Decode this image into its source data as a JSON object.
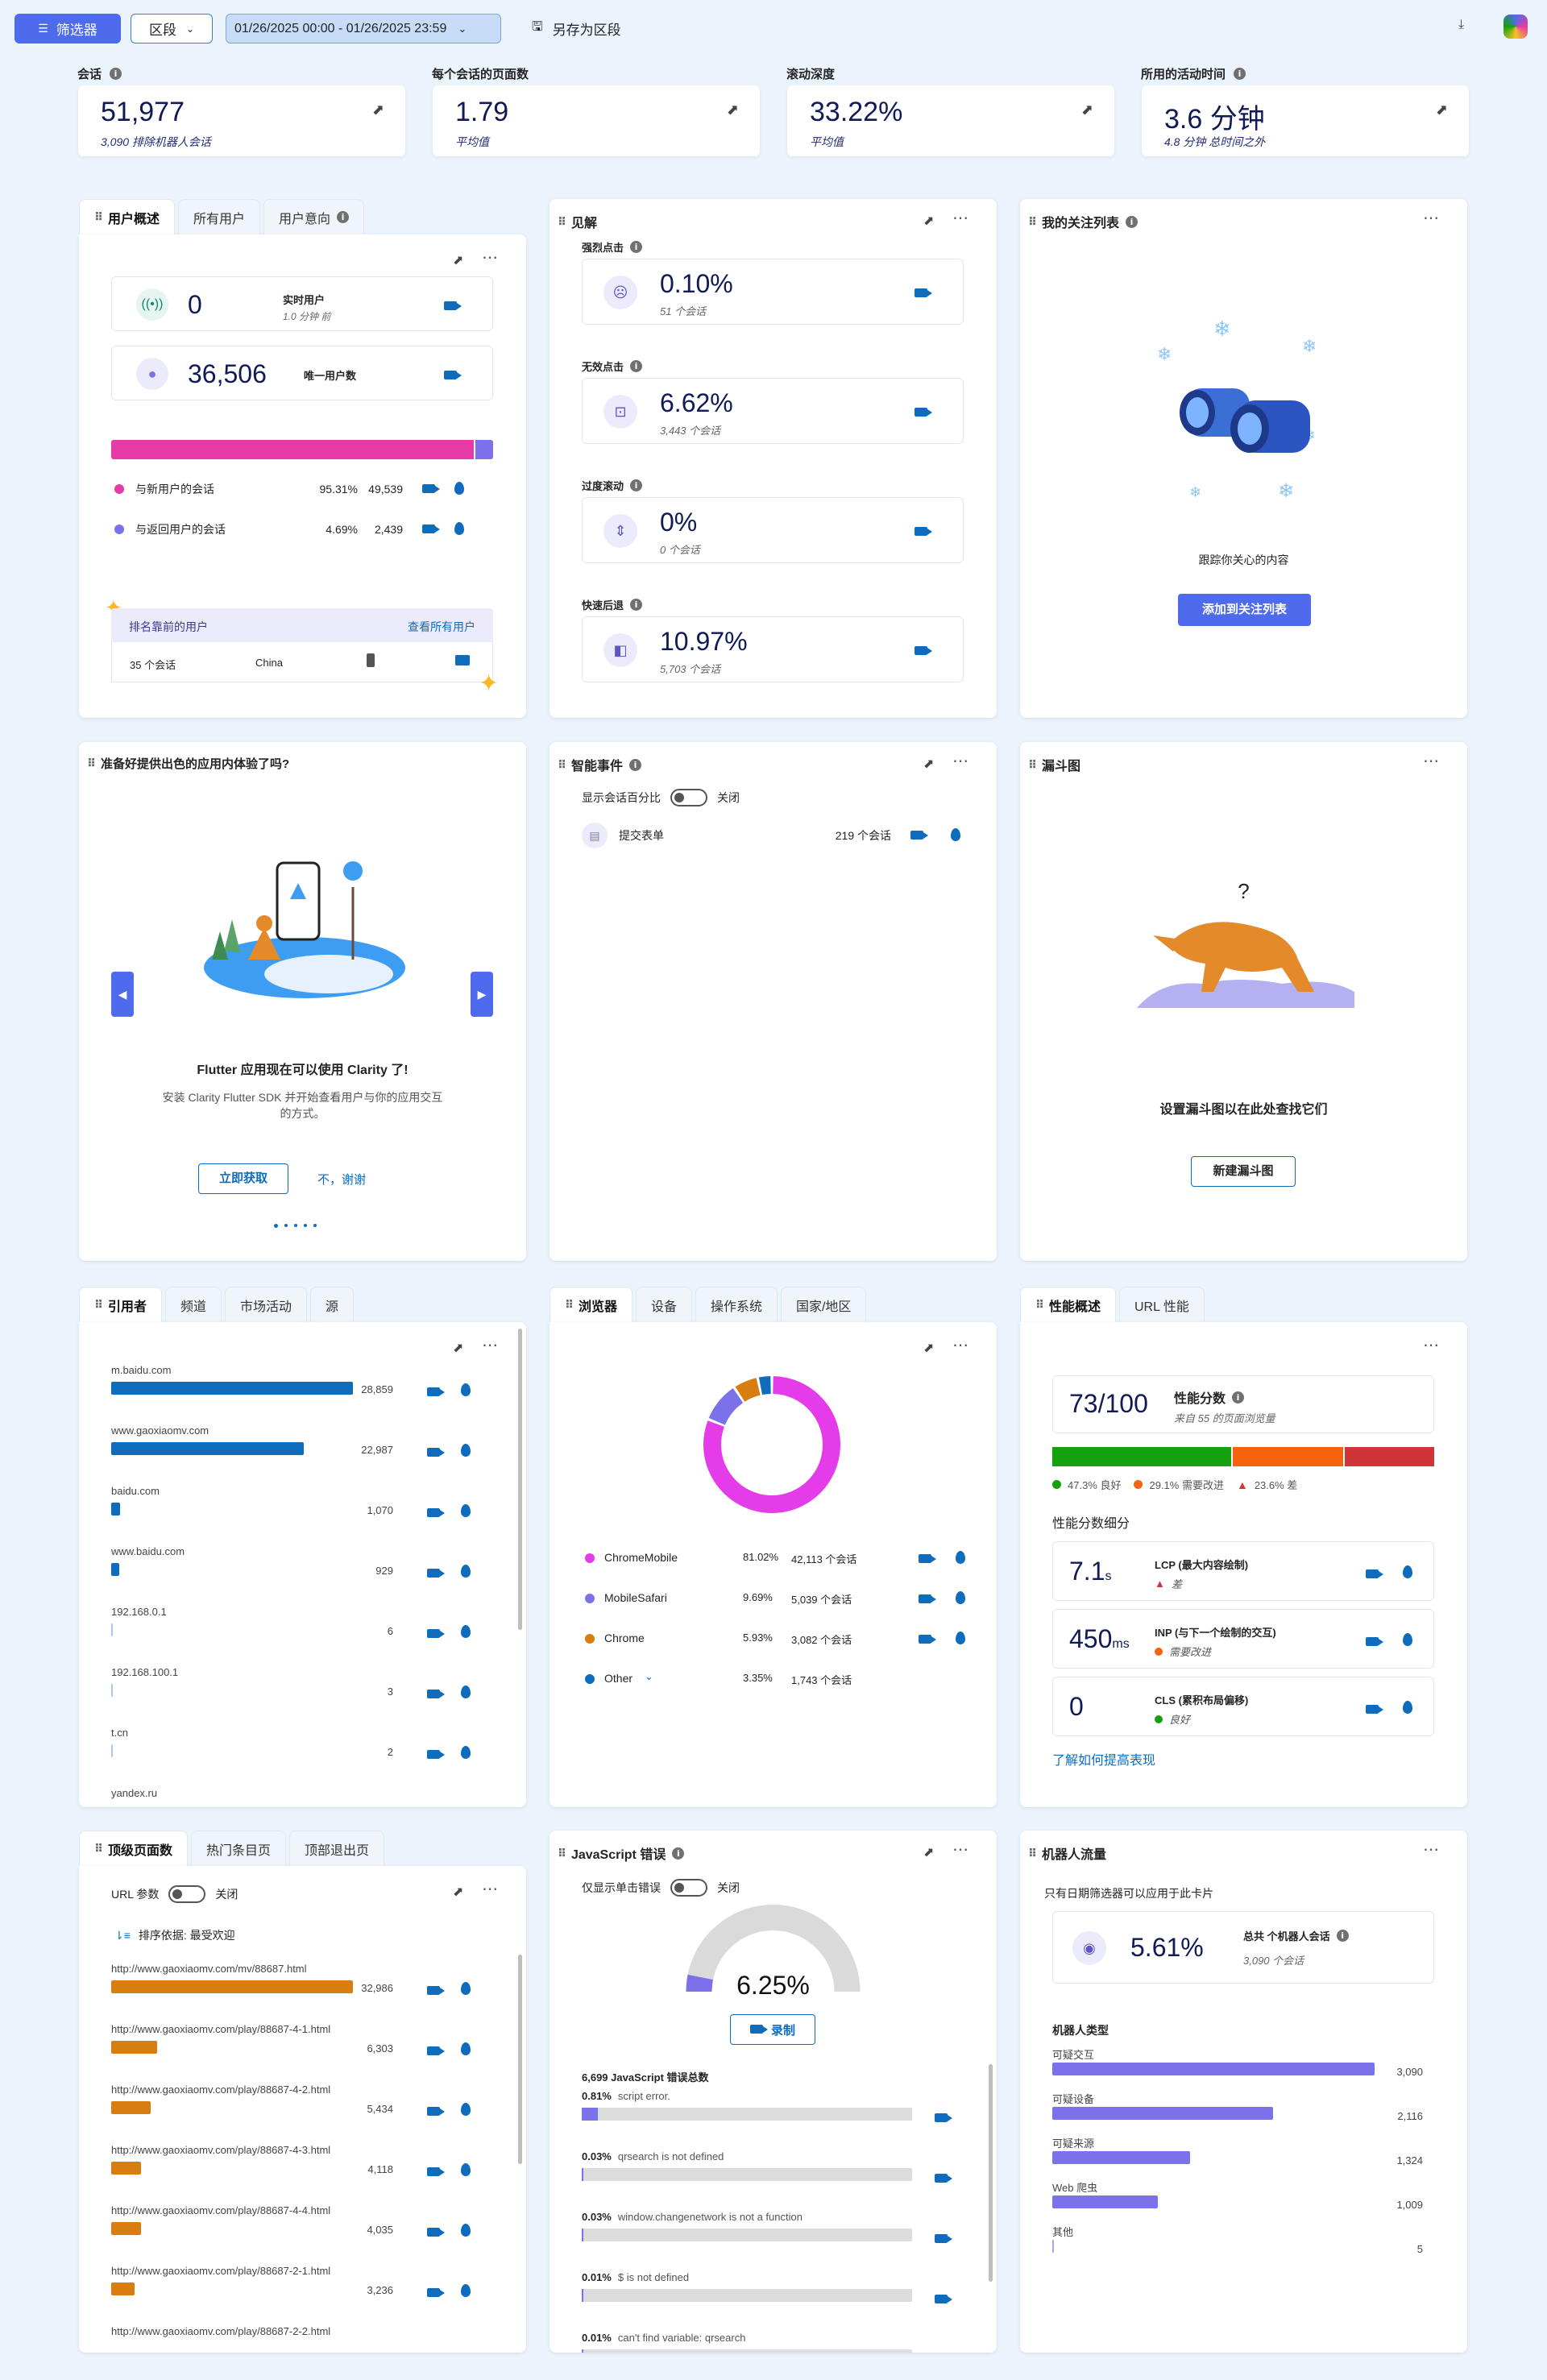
{
  "toolbar": {
    "filter_label": "筛选器",
    "segment_label": "区段",
    "date_range": "01/26/2025 00:00 - 01/26/2025 23:59",
    "save_segment": "另存为区段"
  },
  "kpis": [
    {
      "label": "会话",
      "value": "51,977",
      "sub": "3,090 排除机器人会话",
      "info": true
    },
    {
      "label": "每个会话的页面数",
      "value": "1.79",
      "sub": "平均值",
      "info": false
    },
    {
      "label": "滚动深度",
      "value": "33.22%",
      "sub": "平均值",
      "info": false
    },
    {
      "label": "所用的活动时间",
      "value": "3.6 分钟",
      "sub": "4.8 分钟 总时间之外",
      "info": true
    }
  ],
  "user_overview": {
    "tabs": [
      "用户概述",
      "所有用户",
      "用户意向"
    ],
    "live_users": {
      "value": "0",
      "label": "实时用户",
      "sub": "1.0 分钟 前"
    },
    "unique_users": {
      "value": "36,506",
      "label": "唯一用户数"
    },
    "split": [
      {
        "label": "与新用户的会话",
        "pct": "95.31%",
        "count": "49,539",
        "color": "#e43ba6",
        "fraction": 0.9531
      },
      {
        "label": "与返回用户的会话",
        "pct": "4.69%",
        "count": "2,439",
        "color": "#7b72e9",
        "fraction": 0.0469
      }
    ],
    "top_users_title": "排名靠前的用户",
    "top_users_link": "查看所有用户",
    "top_user_row": {
      "sessions": "35 个会话",
      "country": "China"
    }
  },
  "insights": {
    "title": "见解",
    "items": [
      {
        "label": "强烈点击",
        "value": "0.10%",
        "sub": "51 个会话"
      },
      {
        "label": "无效点击",
        "value": "6.62%",
        "sub": "3,443 个会话"
      },
      {
        "label": "过度滚动",
        "value": "0%",
        "sub": "0 个会话"
      },
      {
        "label": "快速后退",
        "value": "10.97%",
        "sub": "5,703 个会话"
      }
    ]
  },
  "watchlist": {
    "title": "我的关注列表",
    "caption": "跟踪你关心的内容",
    "button": "添加到关注列表"
  },
  "flutter": {
    "title": "准备好提供出色的应用内体验了吗?",
    "heading": "Flutter 应用现在可以使用 Clarity 了!",
    "body_line1": "安装 Clarity Flutter SDK 并开始查看用户与你的应用交互",
    "body_line2": "的方式。",
    "get_button": "立即获取",
    "dismiss": "不，谢谢"
  },
  "smart_events": {
    "title": "智能事件",
    "toggle_label": "显示会话百分比",
    "toggle_state": "关闭",
    "row": {
      "label": "提交表单",
      "count": "219 个会话"
    }
  },
  "funnel": {
    "title": "漏斗图",
    "question": "?",
    "caption": "设置漏斗图以在此处查找它们",
    "button": "新建漏斗图"
  },
  "referrers": {
    "tabs": [
      "引用者",
      "频道",
      "市场活动",
      "源"
    ],
    "color": "#0f6cbd",
    "max": 28859,
    "rows": [
      {
        "label": "m.baidu.com",
        "count": "28,859",
        "value": 28859
      },
      {
        "label": "www.gaoxiaomv.com",
        "count": "22,987",
        "value": 22987
      },
      {
        "label": "baidu.com",
        "count": "1,070",
        "value": 1070
      },
      {
        "label": "www.baidu.com",
        "count": "929",
        "value": 929
      },
      {
        "label": "192.168.0.1",
        "count": "6",
        "value": 6
      },
      {
        "label": "192.168.100.1",
        "count": "3",
        "value": 3
      },
      {
        "label": "t.cn",
        "count": "2",
        "value": 2
      },
      {
        "label": "yandex.ru",
        "count": "",
        "value": 0
      }
    ]
  },
  "browsers": {
    "tabs": [
      "浏览器",
      "设备",
      "操作系统",
      "国家/地区"
    ],
    "rows": [
      {
        "label": "ChromeMobile",
        "pct": "81.02%",
        "count": "42,113 个会话",
        "color": "#e43ce8",
        "fraction": 0.8102
      },
      {
        "label": "MobileSafari",
        "pct": "9.69%",
        "count": "5,039 个会话",
        "color": "#7b72e9",
        "fraction": 0.0969
      },
      {
        "label": "Chrome",
        "pct": "5.93%",
        "count": "3,082 个会话",
        "color": "#d87d0f",
        "fraction": 0.0593
      },
      {
        "label": "Other",
        "pct": "3.35%",
        "count": "1,743 个会话",
        "color": "#0f6cbd",
        "fraction": 0.0335
      }
    ]
  },
  "performance": {
    "tabs": [
      "性能概述",
      "URL 性能"
    ],
    "score": "73/100",
    "score_label": "性能分数",
    "score_sub": "来自 55 的页面浏览量",
    "legend": [
      {
        "label": "47.3% 良好",
        "color": "#13a10e",
        "fraction": 0.473
      },
      {
        "label": "29.1% 需要改进",
        "color": "#f7630c",
        "fraction": 0.291
      },
      {
        "label": "23.6% 差",
        "color": "#d13438",
        "fraction": 0.236
      }
    ],
    "breakdown_title": "性能分数细分",
    "metrics": [
      {
        "value": "7.1",
        "unit": "s",
        "name": "LCP (最大内容绘制)",
        "status": "差",
        "status_color": "#d13438"
      },
      {
        "value": "450",
        "unit": "ms",
        "name": "INP (与下一个绘制的交互)",
        "status": "需要改进",
        "status_color": "#f7630c"
      },
      {
        "value": "0",
        "unit": "",
        "name": "CLS (累积布局偏移)",
        "status": "良好",
        "status_color": "#13a10e"
      }
    ],
    "learn_more": "了解如何提高表现"
  },
  "top_pages": {
    "tabs": [
      "顶级页面数",
      "热门条目页",
      "顶部退出页"
    ],
    "url_param": "URL 参数",
    "toggle_state": "关闭",
    "sort_label": "排序依据: 最受欢迎",
    "color": "#d87d0f",
    "max": 32986,
    "rows": [
      {
        "label": "http://www.gaoxiaomv.com/mv/88687.html",
        "count": "32,986",
        "value": 32986
      },
      {
        "label": "http://www.gaoxiaomv.com/play/88687-4-1.html",
        "count": "6,303",
        "value": 6303
      },
      {
        "label": "http://www.gaoxiaomv.com/play/88687-4-2.html",
        "count": "5,434",
        "value": 5434
      },
      {
        "label": "http://www.gaoxiaomv.com/play/88687-4-3.html",
        "count": "4,118",
        "value": 4118
      },
      {
        "label": "http://www.gaoxiaomv.com/play/88687-4-4.html",
        "count": "4,035",
        "value": 4035
      },
      {
        "label": "http://www.gaoxiaomv.com/play/88687-2-1.html",
        "count": "3,236",
        "value": 3236
      },
      {
        "label": "http://www.gaoxiaomv.com/play/88687-2-2.html",
        "count": "",
        "value": 0
      }
    ]
  },
  "js_errors": {
    "title": "JavaScript 错误",
    "toggle_label": "仅显示单击错误",
    "toggle_state": "关闭",
    "gauge_value": "6.25%",
    "gauge_fraction": 0.0625,
    "record": "录制",
    "total": "6,699 JavaScript 错误总数",
    "rows": [
      {
        "pct": "0.81%",
        "msg": "script error.",
        "fraction": 0.0081
      },
      {
        "pct": "0.03%",
        "msg": "qrsearch is not defined",
        "fraction": 0.0003
      },
      {
        "pct": "0.03%",
        "msg": "window.changenetwork is not a function",
        "fraction": 0.0003
      },
      {
        "pct": "0.01%",
        "msg": "$ is not defined",
        "fraction": 0.0001
      },
      {
        "pct": "0.01%",
        "msg": "can't find variable: qrsearch",
        "fraction": 0.0001
      }
    ]
  },
  "bots": {
    "title": "机器人流量",
    "note": "只有日期筛选器可以应用于此卡片",
    "pct": "5.61%",
    "label": "总共 个机器人会话",
    "sub": "3,090 个会话",
    "types_title": "机器人类型",
    "color": "#7b72e9",
    "max": 3090,
    "rows": [
      {
        "label": "可疑交互",
        "count": "3,090",
        "value": 3090
      },
      {
        "label": "可疑设备",
        "count": "2,116",
        "value": 2116
      },
      {
        "label": "可疑来源",
        "count": "1,324",
        "value": 1324
      },
      {
        "label": "Web 爬虫",
        "count": "1,009",
        "value": 1009
      },
      {
        "label": "其他",
        "count": "5",
        "value": 5
      }
    ]
  }
}
